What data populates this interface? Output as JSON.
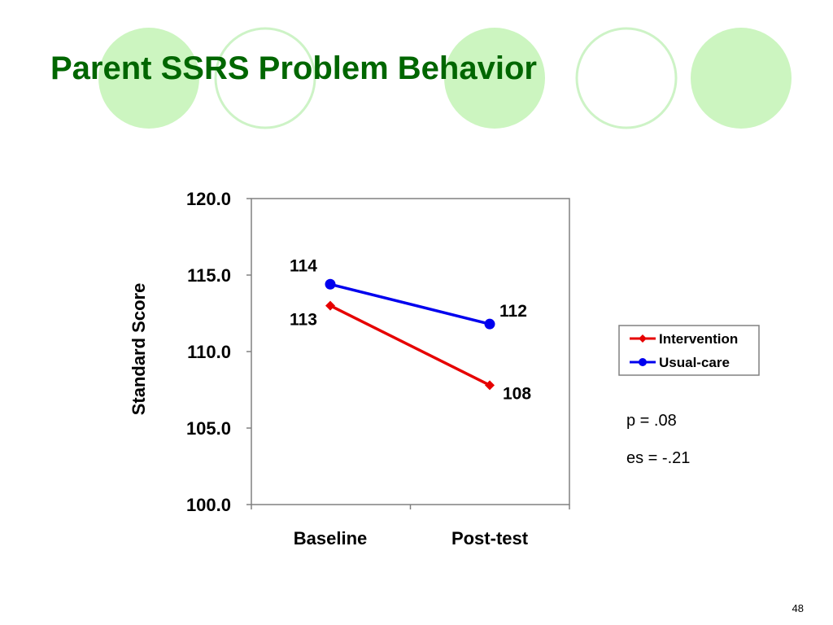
{
  "slide": {
    "title": "Parent SSRS Problem Behavior",
    "p_value": "p = .08",
    "effect_size": "es = -.21",
    "page_number": "48"
  },
  "colors": {
    "title": "#006600",
    "circle_fill": "#ccf5c0",
    "circle_ring": "#cdf3c6",
    "intervention": "#e60000",
    "usual_care": "#0000ee"
  },
  "chart_data": {
    "type": "line",
    "categories": [
      "Baseline",
      "Post-test"
    ],
    "ylabel": "Standard Score",
    "ylim": [
      100,
      120
    ],
    "yticks": [
      "100.0",
      "105.0",
      "110.0",
      "115.0",
      "120.0"
    ],
    "grid": false,
    "legend_position": "right",
    "series": [
      {
        "name": "Intervention",
        "values": [
          113,
          107.8
        ],
        "labels": [
          "113",
          "108"
        ],
        "marker": "diamond",
        "color": "#e60000"
      },
      {
        "name": "Usual-care",
        "values": [
          114.4,
          111.8
        ],
        "labels": [
          "114",
          "112"
        ],
        "marker": "circle",
        "color": "#0000ee"
      }
    ]
  }
}
